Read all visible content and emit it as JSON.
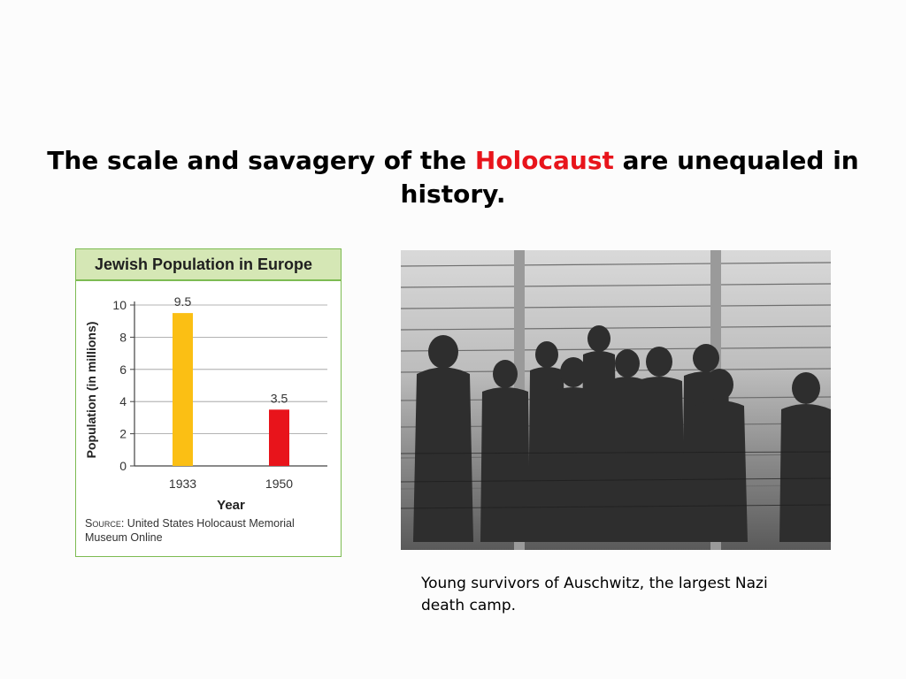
{
  "slide": {
    "title_before": "The scale and savagery of the ",
    "title_highlight": "Holocaust",
    "title_after": " are unequaled in history.",
    "highlight_color": "#e8141b"
  },
  "chart_data": {
    "type": "bar",
    "title": "Jewish Population in Europe",
    "categories": [
      "1933",
      "1950"
    ],
    "values": [
      9.5,
      3.5
    ],
    "data_labels": [
      "9.5",
      "3.5"
    ],
    "bar_colors": [
      "#fbbf14",
      "#e8141b"
    ],
    "xlabel": "Year",
    "ylabel": "Population (in millions)",
    "ylim": [
      0,
      10
    ],
    "yticks": [
      0,
      2,
      4,
      6,
      8,
      10
    ],
    "grid": true
  },
  "source": {
    "label": "Source:",
    "text": " United States Holocaust Memorial Museum Online"
  },
  "photo": {
    "caption": "Young survivors of Auschwitz, the largest Nazi death camp."
  }
}
